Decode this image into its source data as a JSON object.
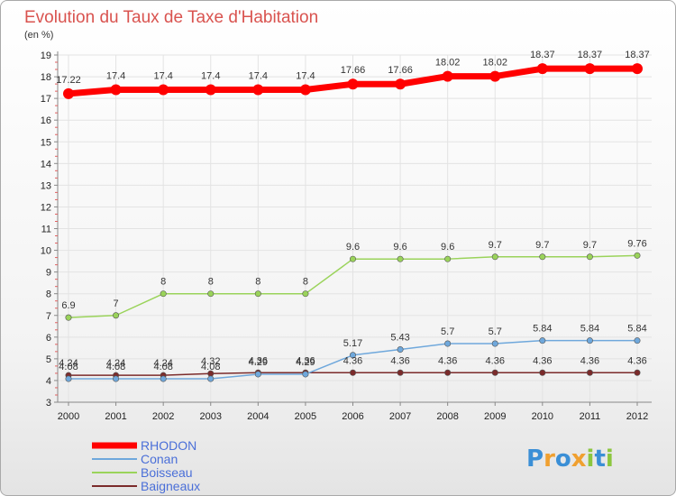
{
  "chart_data": {
    "type": "line",
    "title": "Evolution du Taux de Taxe d'Habitation",
    "ylabel": "(en %)",
    "xlabel": "",
    "ylim": [
      3,
      19
    ],
    "yticks": [
      "3",
      "4",
      "5",
      "6",
      "7",
      "8",
      "9",
      "10",
      "11",
      "12",
      "13",
      "14",
      "15",
      "16",
      "17",
      "18",
      "19"
    ],
    "x": [
      "2000",
      "2001",
      "2002",
      "2003",
      "2004",
      "2005",
      "2006",
      "2007",
      "2008",
      "2009",
      "2010",
      "2011",
      "2012"
    ],
    "series": [
      {
        "name": "RHODON",
        "color": "#ff0000",
        "values": [
          17.22,
          17.4,
          17.4,
          17.4,
          17.4,
          17.4,
          17.66,
          17.66,
          18.02,
          18.02,
          18.37,
          18.37,
          18.37
        ],
        "labels": [
          "17.22",
          "17.4",
          "17.4",
          "17.4",
          "17.4",
          "17.4",
          "17.66",
          "17.66",
          "18.02",
          "18.02",
          "18.37",
          "18.37",
          "18.37"
        ]
      },
      {
        "name": "Conan",
        "color": "#6fa8dc",
        "values": [
          4.08,
          4.08,
          4.08,
          4.08,
          4.29,
          4.29,
          5.17,
          5.43,
          5.7,
          5.7,
          5.84,
          5.84,
          5.84
        ],
        "labels": [
          "4.08",
          "4.08",
          "4.08",
          "4.08",
          "4.29",
          "4.29",
          "5.17",
          "5.43",
          "5.7",
          "5.7",
          "5.84",
          "5.84",
          "5.84"
        ]
      },
      {
        "name": "Boisseau",
        "color": "#9ad35a",
        "values": [
          6.9,
          7,
          8,
          8,
          8,
          8,
          9.6,
          9.6,
          9.6,
          9.7,
          9.7,
          9.7,
          9.76
        ],
        "labels": [
          "6.9",
          "7",
          "8",
          "8",
          "8",
          "8",
          "9.6",
          "9.6",
          "9.6",
          "9.7",
          "9.7",
          "9.7",
          "9.76"
        ]
      },
      {
        "name": "Baigneaux",
        "color": "#7b2b2b",
        "values": [
          4.24,
          4.24,
          4.24,
          4.32,
          4.36,
          4.36,
          4.36,
          4.36,
          4.36,
          4.36,
          4.36,
          4.36,
          4.36
        ],
        "labels": [
          "4.24",
          "4.24",
          "4.24",
          "4.32",
          "4.36",
          "4.36",
          "4.36",
          "4.36",
          "4.36",
          "4.36",
          "4.36",
          "4.36",
          "4.36"
        ]
      }
    ],
    "legend_position": "bottom-left"
  },
  "logo": {
    "letters": [
      "P",
      "r",
      "o",
      "x",
      "i",
      "t",
      "i"
    ],
    "colors": [
      "#3b8fd6",
      "#f0a030",
      "#3b8fd6",
      "#f0a030",
      "#8cc63f",
      "#3b8fd6",
      "#8cc63f"
    ]
  }
}
